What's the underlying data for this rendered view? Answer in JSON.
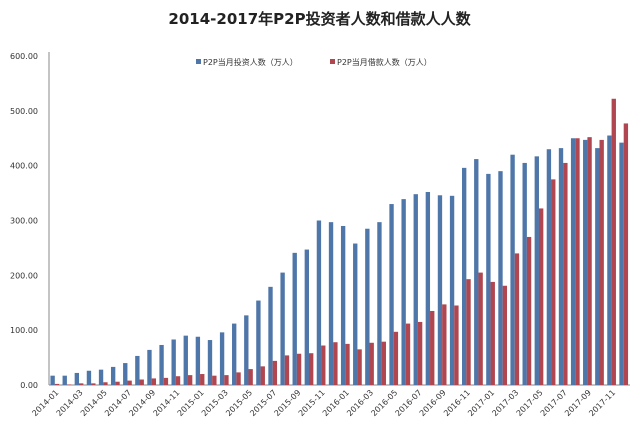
{
  "chart_data": {
    "type": "bar",
    "title": "2014-2017年P2P投资者人数和借款人人数",
    "xlabel": "",
    "ylabel": "",
    "ylim": [
      0,
      600
    ],
    "yticks": [
      "0.00",
      "100.00",
      "200.00",
      "300.00",
      "400.00",
      "500.00",
      "600.00"
    ],
    "grid": false,
    "legend_position": "top",
    "categories": [
      "2014-01",
      "2014-02",
      "2014-03",
      "2014-04",
      "2014-05",
      "2014-06",
      "2014-07",
      "2014-08",
      "2014-09",
      "2014-10",
      "2014-11",
      "2014-12",
      "2015-01",
      "2015-02",
      "2015-03",
      "2015-04",
      "2015-05",
      "2015-06",
      "2015-07",
      "2015-08",
      "2015-09",
      "2015-10",
      "2015-11",
      "2015-12",
      "2016-01",
      "2016-02",
      "2016-03",
      "2016-04",
      "2016-05",
      "2016-06",
      "2016-07",
      "2016-08",
      "2016-09",
      "2016-10",
      "2016-11",
      "2016-12",
      "2017-01",
      "2017-02",
      "2017-03",
      "2017-04",
      "2017-05",
      "2017-06",
      "2017-07",
      "2017-08",
      "2017-09",
      "2017-10",
      "2017-11",
      "2017-12"
    ],
    "series": [
      {
        "name": "P2P当月投资人数（万人）",
        "color": "#4f76a8",
        "values": [
          17,
          17,
          22,
          26,
          28,
          33,
          40,
          53,
          64,
          73,
          83,
          90,
          88,
          82,
          96,
          112,
          127,
          154,
          179,
          205,
          241,
          247,
          300,
          297,
          290,
          258,
          285,
          297,
          330,
          339,
          348,
          352,
          346,
          345,
          396,
          412,
          385,
          390,
          420,
          405,
          417,
          430,
          432,
          450,
          447,
          432,
          455,
          442
        ]
      },
      {
        "name": "P2P当月借款人数（万人）",
        "color": "#b0464f",
        "values": [
          2,
          1,
          3,
          3,
          5,
          6,
          8,
          10,
          12,
          13,
          16,
          18,
          20,
          17,
          18,
          23,
          29,
          34,
          44,
          54,
          57,
          58,
          72,
          78,
          75,
          65,
          77,
          79,
          97,
          112,
          115,
          135,
          147,
          145,
          193,
          205,
          188,
          181,
          240,
          270,
          322,
          375,
          405,
          450,
          452,
          447,
          522,
          477
        ]
      }
    ]
  }
}
